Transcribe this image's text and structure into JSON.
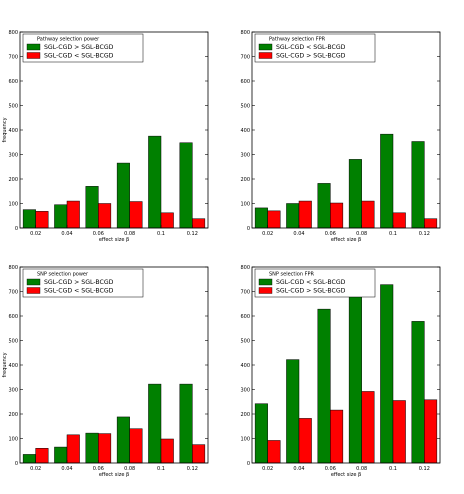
{
  "chart_data": [
    {
      "type": "bar",
      "title": "Pathway selection power",
      "xlabel": "effect size β",
      "ylabel": "frequency",
      "ylim": [
        0,
        800
      ],
      "yticks": [
        0,
        100,
        200,
        300,
        400,
        500,
        600,
        700,
        800
      ],
      "categories": [
        "0.02",
        "0.04",
        "0.06",
        "0.08",
        "0.1",
        "0.12"
      ],
      "legend_position": "top-left",
      "grid": false,
      "series": [
        {
          "name": "SGL-CGD > SGL-BCGD",
          "color": "#008000",
          "values": [
            75,
            95,
            170,
            265,
            375,
            348
          ]
        },
        {
          "name": "SGL-CGD < SGL-BCGD",
          "color": "#ff0000",
          "values": [
            68,
            110,
            100,
            108,
            62,
            38
          ]
        }
      ]
    },
    {
      "type": "bar",
      "title": "Pathway selection FPR",
      "xlabel": "effect size β",
      "ylabel": "",
      "ylim": [
        0,
        800
      ],
      "yticks": [
        0,
        100,
        200,
        300,
        400,
        500,
        600,
        700,
        800
      ],
      "categories": [
        "0.02",
        "0.04",
        "0.06",
        "0.08",
        "0.1",
        "0.12"
      ],
      "legend_position": "top-left",
      "grid": false,
      "series": [
        {
          "name": "SGL-CGD < SGL-BCGD",
          "color": "#008000",
          "values": [
            82,
            100,
            182,
            280,
            383,
            353
          ]
        },
        {
          "name": "SGL-CGD > SGL-BCGD",
          "color": "#ff0000",
          "values": [
            70,
            110,
            102,
            110,
            62,
            38
          ]
        }
      ]
    },
    {
      "type": "bar",
      "title": "SNP selection power",
      "xlabel": "effect size β",
      "ylabel": "frequency",
      "ylim": [
        0,
        800
      ],
      "yticks": [
        0,
        100,
        200,
        300,
        400,
        500,
        600,
        700,
        800
      ],
      "categories": [
        "0.02",
        "0.04",
        "0.06",
        "0.08",
        "0.1",
        "0.12"
      ],
      "legend_position": "top-left",
      "grid": false,
      "series": [
        {
          "name": "SGL-CGD > SGL-BCGD",
          "color": "#008000",
          "values": [
            35,
            65,
            122,
            188,
            322,
            322
          ]
        },
        {
          "name": "SGL-CGD < SGL-BCGD",
          "color": "#ff0000",
          "values": [
            60,
            115,
            120,
            140,
            98,
            75
          ]
        }
      ]
    },
    {
      "type": "bar",
      "title": "SNP selection FPR",
      "xlabel": "effect size β",
      "ylabel": "",
      "ylim": [
        0,
        800
      ],
      "yticks": [
        0,
        100,
        200,
        300,
        400,
        500,
        600,
        700,
        800
      ],
      "categories": [
        "0.02",
        "0.04",
        "0.06",
        "0.08",
        "0.1",
        "0.12"
      ],
      "legend_position": "top-left",
      "grid": false,
      "series": [
        {
          "name": "SGL-CGD < SGL-BCGD",
          "color": "#008000",
          "values": [
            242,
            422,
            628,
            695,
            728,
            578
          ]
        },
        {
          "name": "SGL-CGD > SGL-BCGD",
          "color": "#ff0000",
          "values": [
            92,
            182,
            216,
            292,
            255,
            258
          ]
        }
      ]
    }
  ]
}
